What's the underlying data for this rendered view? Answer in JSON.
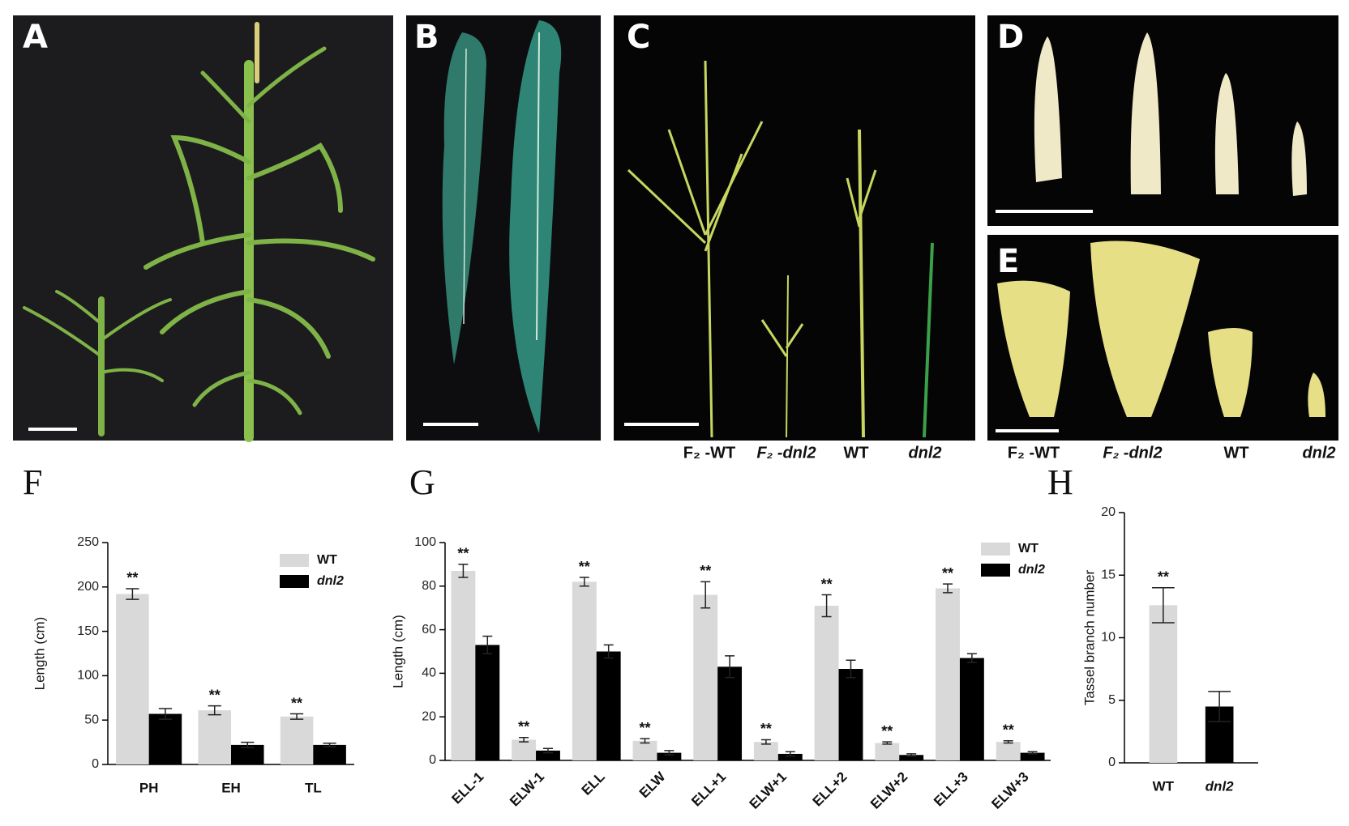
{
  "panels": {
    "a": "A",
    "b": "B",
    "c": "C",
    "d": "D",
    "e": "E",
    "f": "F",
    "g": "G",
    "h": "H"
  },
  "c_labels": [
    "F₂ -WT",
    "F₂ -dnl2",
    "WT",
    "dnl2"
  ],
  "e_labels": [
    "F₂ -WT",
    "F₂ -dnl2",
    "WT",
    "dnl2"
  ],
  "chart_data": [
    {
      "type": "bar",
      "ylabel": "Length (cm)",
      "categories": [
        "PH",
        "EH",
        "TL"
      ],
      "series": [
        {
          "name": "WT",
          "color": "#d9d9d9",
          "values": [
            192,
            61,
            54
          ],
          "errors": [
            6,
            5,
            3
          ]
        },
        {
          "name": "dnl2",
          "color": "#000000",
          "values": [
            57,
            22,
            22
          ],
          "errors": [
            6,
            3,
            2
          ]
        }
      ],
      "annotations": [
        "**",
        "**",
        "**"
      ],
      "ylim": [
        0,
        250
      ],
      "yticks": [
        0,
        50,
        100,
        150,
        200,
        250
      ],
      "legend": "top-right"
    },
    {
      "type": "bar",
      "ylabel": "Length (cm)",
      "categories": [
        "ELL-1",
        "ELW-1",
        "ELL",
        "ELW",
        "ELL+1",
        "ELW+1",
        "ELL+2",
        "ELW+2",
        "ELL+3",
        "ELW+3"
      ],
      "series": [
        {
          "name": "WT",
          "color": "#d9d9d9",
          "values": [
            87,
            9.5,
            82,
            9,
            76,
            8.5,
            71,
            8,
            79,
            8.5
          ],
          "errors": [
            3,
            1,
            2,
            1,
            6,
            1,
            5,
            0.5,
            2,
            0.5
          ]
        },
        {
          "name": "dnl2",
          "color": "#000000",
          "values": [
            53,
            4.5,
            50,
            3.5,
            43,
            3,
            42,
            2.5,
            47,
            3.5
          ],
          "errors": [
            4,
            1,
            3,
            1,
            5,
            1,
            4,
            0.5,
            2,
            0.5
          ]
        }
      ],
      "annotations": [
        "**",
        "**",
        "**",
        "**",
        "**",
        "**",
        "**",
        "**",
        "**",
        "**"
      ],
      "ylim": [
        0,
        100
      ],
      "yticks": [
        0,
        20,
        40,
        60,
        80,
        100
      ],
      "legend": "top-right",
      "rotate_labels": true
    },
    {
      "type": "bar",
      "ylabel": "Tassel branch number",
      "categories": [
        "WT",
        "dnl2"
      ],
      "values": [
        12.6,
        4.5
      ],
      "errors": [
        1.4,
        1.2
      ],
      "colors": [
        "#d9d9d9",
        "#000000"
      ],
      "annotations": [
        "**"
      ],
      "ylim": [
        0,
        20
      ],
      "yticks": [
        0,
        5,
        10,
        15,
        20
      ]
    }
  ]
}
